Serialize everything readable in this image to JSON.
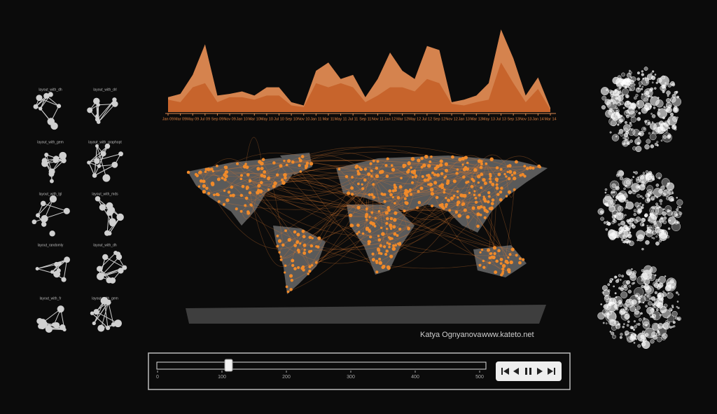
{
  "chart_data": {
    "type": "area",
    "categories": [
      "Jan 09",
      "Mar 09",
      "May 09",
      "Jul 09",
      "Sep 09",
      "Nov 09",
      "Jan 10",
      "Mar 10",
      "May 10",
      "Jul 10",
      "Sep 10",
      "Nov 10",
      "Jan 11",
      "Mar 11",
      "May 11",
      "Jul 11",
      "Sep 11",
      "Nov 11",
      "Jan 12",
      "Mar 12",
      "May 12",
      "Jul 12",
      "Sep 12",
      "Nov 12",
      "Jan 13",
      "Mar 13",
      "May 13",
      "Jul 13",
      "Sep 13",
      "Nov 13",
      "Jan 14",
      "Mar 14"
    ],
    "series": [
      {
        "color": "#e08a52",
        "values": [
          18,
          22,
          45,
          82,
          20,
          22,
          25,
          20,
          30,
          30,
          12,
          8,
          50,
          60,
          40,
          45,
          18,
          40,
          72,
          50,
          40,
          80,
          75,
          12,
          15,
          20,
          35,
          100,
          65,
          20,
          42,
          5
        ]
      },
      {
        "color": "#c6622a",
        "values": [
          15,
          12,
          30,
          35,
          12,
          18,
          18,
          15,
          20,
          20,
          8,
          6,
          35,
          30,
          35,
          30,
          12,
          20,
          30,
          30,
          25,
          40,
          35,
          10,
          8,
          12,
          15,
          60,
          35,
          12,
          28,
          3
        ]
      }
    ],
    "ylim": [
      0,
      100
    ]
  },
  "layouts": {
    "labels": [
      "layout_with_dh",
      "layout_with_drl",
      "layout_with_gem",
      "layout_with_graphopt",
      "layout_with_lgl",
      "layout_with_mds",
      "layout_randomly",
      "layout_with_dh",
      "layout_with_fr",
      "layout_with_gem"
    ]
  },
  "credit": {
    "author": "Katya Ognyanova",
    "website": "www.kateto.net"
  },
  "slider": {
    "ticks": [
      0,
      100,
      200,
      300,
      400,
      500
    ]
  }
}
